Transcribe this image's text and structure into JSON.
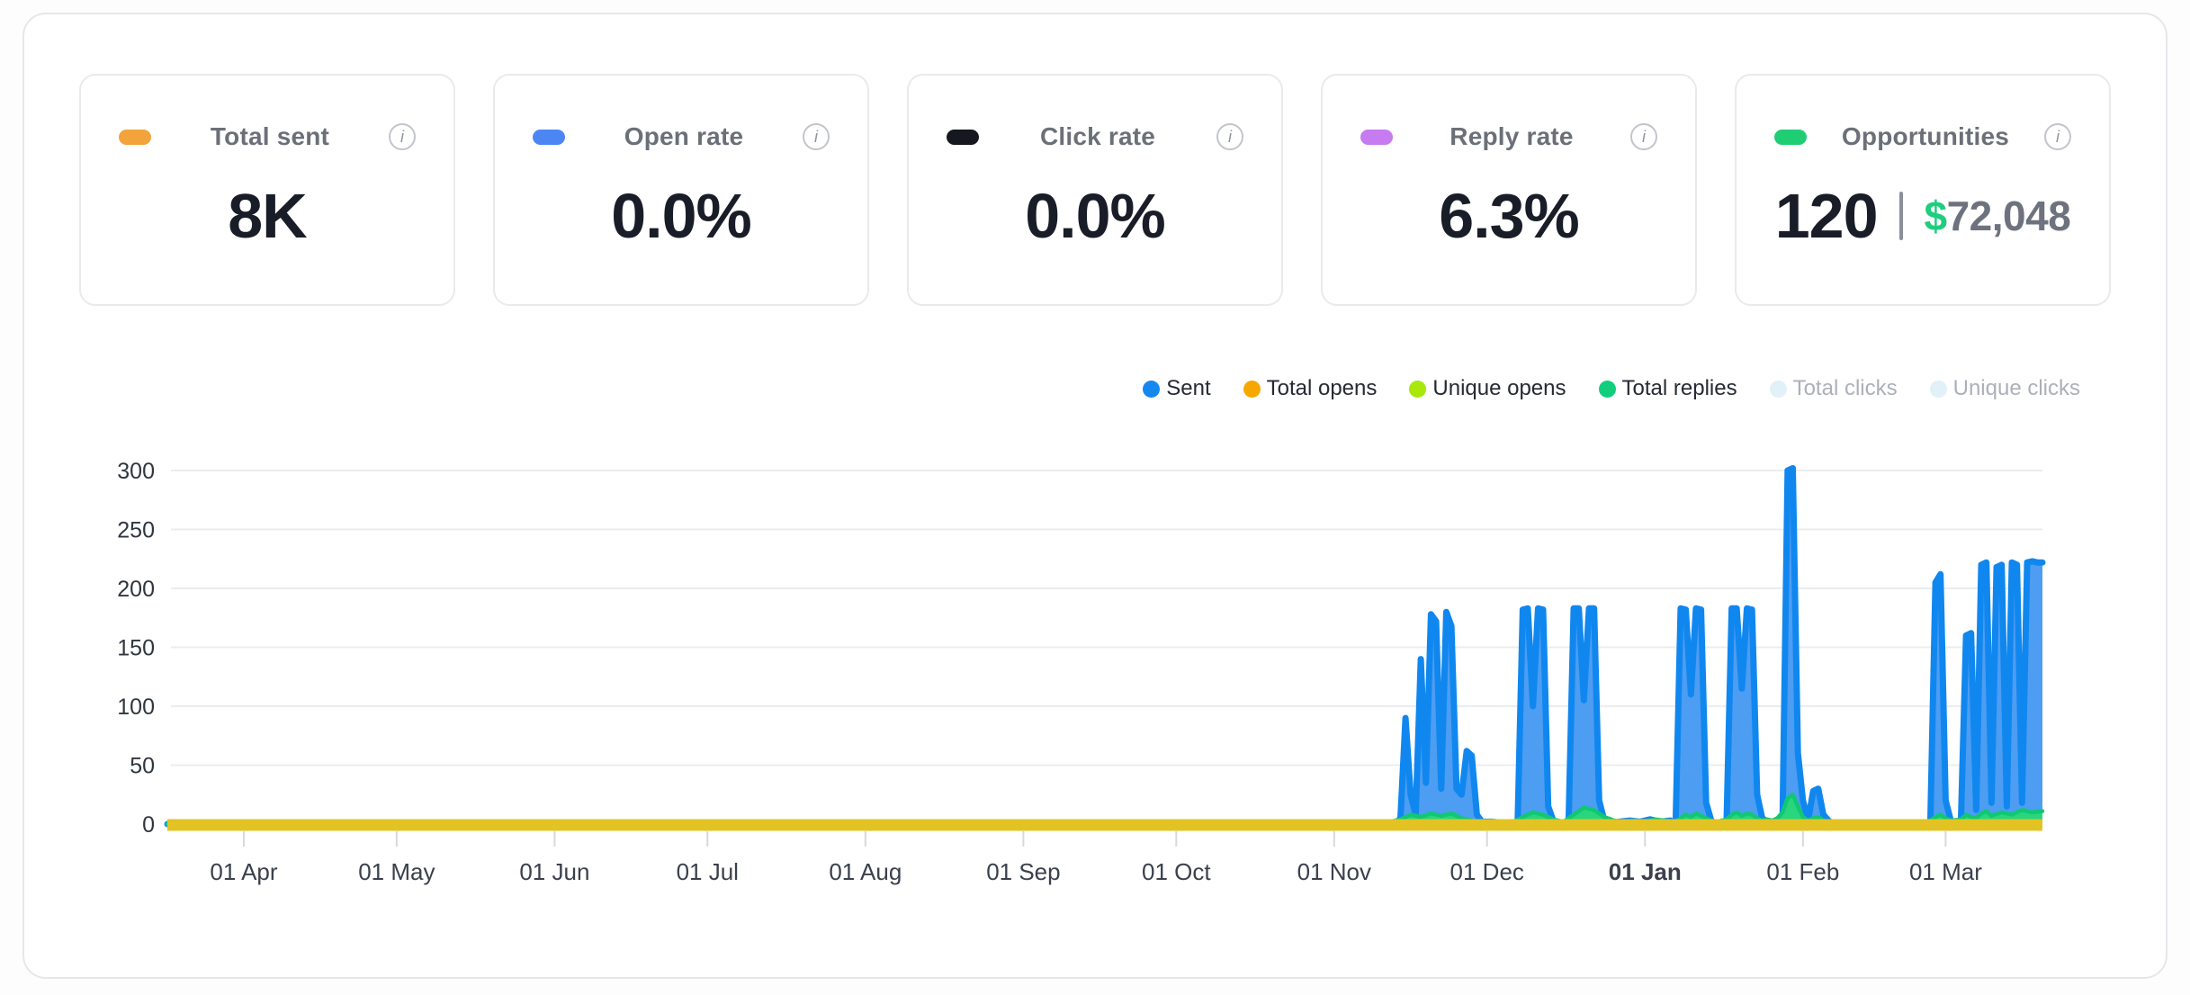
{
  "cards": [
    {
      "label": "Total sent",
      "value": "8K",
      "accent": "#F2A33C"
    },
    {
      "label": "Open rate",
      "value": "0.0%",
      "accent": "#4C86F5"
    },
    {
      "label": "Click rate",
      "value": "0.0%",
      "accent": "#15181F"
    },
    {
      "label": "Reply rate",
      "value": "6.3%",
      "accent": "#C77BF0"
    },
    {
      "label": "Opportunities",
      "value": "120",
      "accent": "#1FCE72",
      "secondary_currency": "$",
      "secondary_value": "72,048"
    }
  ],
  "info_glyph": "i",
  "legend": [
    {
      "label": "Sent",
      "color": "#1588F0",
      "active": true
    },
    {
      "label": "Total opens",
      "color": "#F7A800",
      "active": true
    },
    {
      "label": "Unique opens",
      "color": "#A8E80D",
      "active": true
    },
    {
      "label": "Total replies",
      "color": "#12CE7C",
      "active": true
    },
    {
      "label": "Total clicks",
      "color": "#E2F0F8",
      "active": false
    },
    {
      "label": "Unique clicks",
      "color": "#E2F0F8",
      "active": false
    }
  ],
  "chart_data": {
    "type": "area",
    "ylim": [
      0,
      300
    ],
    "yticks": [
      0,
      50,
      100,
      150,
      200,
      250,
      300
    ],
    "x_tick_labels": [
      "01 Apr",
      "01 May",
      "01 Jun",
      "01 Jul",
      "01 Aug",
      "01 Sep",
      "01 Oct",
      "01 Nov",
      "01 Dec",
      "01 Jan",
      "01 Feb",
      "01 Mar"
    ],
    "x_tick_days": [
      15,
      45,
      76,
      106,
      137,
      168,
      198,
      229,
      259,
      290,
      321,
      349
    ],
    "bold_tick_label": "01 Jan",
    "domain_days": [
      0,
      368
    ],
    "grid": true,
    "legend_position": "top-right",
    "series": [
      {
        "name": "Sent",
        "stroke": "#1087EF",
        "fill": "#4D9DF2",
        "points": [
          [
            0,
            0
          ],
          [
            235,
            0
          ],
          [
            241,
            0
          ],
          [
            242,
            5
          ],
          [
            243,
            90
          ],
          [
            244,
            25
          ],
          [
            245,
            8
          ],
          [
            246,
            140
          ],
          [
            247,
            35
          ],
          [
            248,
            178
          ],
          [
            249,
            172
          ],
          [
            250,
            30
          ],
          [
            251,
            180
          ],
          [
            252,
            168
          ],
          [
            253,
            30
          ],
          [
            254,
            25
          ],
          [
            255,
            62
          ],
          [
            256,
            58
          ],
          [
            257,
            8
          ],
          [
            258,
            2
          ],
          [
            260,
            2
          ],
          [
            261,
            0
          ],
          [
            265,
            0
          ],
          [
            266,
            182
          ],
          [
            267,
            183
          ],
          [
            268,
            100
          ],
          [
            269,
            183
          ],
          [
            270,
            182
          ],
          [
            271,
            15
          ],
          [
            272,
            3
          ],
          [
            273,
            0
          ],
          [
            275,
            0
          ],
          [
            276,
            183
          ],
          [
            277,
            183
          ],
          [
            278,
            105
          ],
          [
            279,
            183
          ],
          [
            280,
            183
          ],
          [
            281,
            20
          ],
          [
            282,
            3
          ],
          [
            283,
            0
          ],
          [
            285,
            2
          ],
          [
            287,
            3
          ],
          [
            289,
            2
          ],
          [
            291,
            4
          ],
          [
            293,
            2
          ],
          [
            295,
            3
          ],
          [
            296,
            0
          ],
          [
            297,
            183
          ],
          [
            298,
            182
          ],
          [
            299,
            110
          ],
          [
            300,
            183
          ],
          [
            301,
            182
          ],
          [
            302,
            18
          ],
          [
            303,
            3
          ],
          [
            304,
            0
          ],
          [
            306,
            0
          ],
          [
            307,
            183
          ],
          [
            308,
            183
          ],
          [
            309,
            115
          ],
          [
            310,
            183
          ],
          [
            311,
            182
          ],
          [
            312,
            25
          ],
          [
            313,
            5
          ],
          [
            314,
            2
          ],
          [
            316,
            2
          ],
          [
            317,
            5
          ],
          [
            318,
            300
          ],
          [
            319,
            302
          ],
          [
            320,
            60
          ],
          [
            321,
            20
          ],
          [
            322,
            3
          ],
          [
            323,
            28
          ],
          [
            324,
            30
          ],
          [
            325,
            8
          ],
          [
            326,
            3
          ],
          [
            327,
            0
          ],
          [
            346,
            0
          ],
          [
            347,
            205
          ],
          [
            348,
            212
          ],
          [
            349,
            20
          ],
          [
            350,
            3
          ],
          [
            351,
            0
          ],
          [
            352,
            2
          ],
          [
            353,
            160
          ],
          [
            354,
            162
          ],
          [
            355,
            12
          ],
          [
            356,
            220
          ],
          [
            357,
            222
          ],
          [
            358,
            18
          ],
          [
            359,
            218
          ],
          [
            360,
            220
          ],
          [
            361,
            15
          ],
          [
            362,
            222
          ],
          [
            363,
            220
          ],
          [
            364,
            18
          ],
          [
            365,
            222
          ],
          [
            366,
            223
          ],
          [
            367,
            222
          ],
          [
            368,
            222
          ]
        ]
      },
      {
        "name": "Total replies",
        "stroke": "#10C873",
        "fill": "#2AD67D",
        "points": [
          [
            0,
            0
          ],
          [
            238,
            0
          ],
          [
            242,
            4
          ],
          [
            244,
            8
          ],
          [
            246,
            6
          ],
          [
            248,
            9
          ],
          [
            250,
            7
          ],
          [
            252,
            9
          ],
          [
            254,
            5
          ],
          [
            256,
            3
          ],
          [
            258,
            2
          ],
          [
            260,
            3
          ],
          [
            262,
            2
          ],
          [
            264,
            1
          ],
          [
            266,
            6
          ],
          [
            268,
            10
          ],
          [
            270,
            8
          ],
          [
            272,
            4
          ],
          [
            274,
            2
          ],
          [
            276,
            8
          ],
          [
            278,
            14
          ],
          [
            280,
            12
          ],
          [
            282,
            6
          ],
          [
            284,
            3
          ],
          [
            286,
            2
          ],
          [
            288,
            3
          ],
          [
            290,
            2
          ],
          [
            292,
            4
          ],
          [
            294,
            3
          ],
          [
            296,
            2
          ],
          [
            297,
            5
          ],
          [
            298,
            8
          ],
          [
            299,
            6
          ],
          [
            300,
            9
          ],
          [
            301,
            7
          ],
          [
            302,
            5
          ],
          [
            303,
            3
          ],
          [
            304,
            2
          ],
          [
            306,
            4
          ],
          [
            307,
            8
          ],
          [
            308,
            10
          ],
          [
            309,
            7
          ],
          [
            310,
            9
          ],
          [
            311,
            8
          ],
          [
            312,
            5
          ],
          [
            313,
            3
          ],
          [
            314,
            4
          ],
          [
            315,
            3
          ],
          [
            316,
            5
          ],
          [
            317,
            10
          ],
          [
            318,
            22
          ],
          [
            319,
            25
          ],
          [
            320,
            15
          ],
          [
            321,
            6
          ],
          [
            322,
            3
          ],
          [
            323,
            5
          ],
          [
            324,
            6
          ],
          [
            325,
            3
          ],
          [
            326,
            2
          ],
          [
            328,
            1
          ],
          [
            332,
            0
          ],
          [
            344,
            1
          ],
          [
            346,
            3
          ],
          [
            347,
            6
          ],
          [
            348,
            8
          ],
          [
            349,
            5
          ],
          [
            350,
            3
          ],
          [
            352,
            4
          ],
          [
            353,
            8
          ],
          [
            354,
            6
          ],
          [
            355,
            5
          ],
          [
            356,
            9
          ],
          [
            357,
            11
          ],
          [
            358,
            7
          ],
          [
            360,
            10
          ],
          [
            362,
            8
          ],
          [
            364,
            12
          ],
          [
            366,
            10
          ],
          [
            368,
            11
          ]
        ]
      },
      {
        "name": "Total opens / Unique opens (≈0 baseline band)",
        "stroke": "#E3C324",
        "fill": "#E3C324",
        "band": true,
        "points": [
          [
            0,
            1
          ],
          [
            368,
            1
          ]
        ]
      }
    ],
    "disabled_series": [
      "Total clicks",
      "Unique clicks"
    ]
  }
}
